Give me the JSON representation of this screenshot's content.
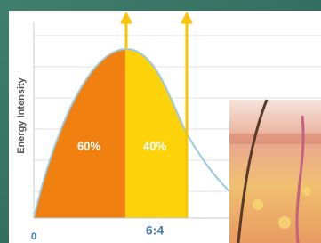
{
  "axis_label": "Energy Intensity",
  "origin_label": "0",
  "regions": [
    {
      "label": "60%"
    },
    {
      "label": "40%"
    }
  ],
  "ratio_label": "6:4"
}
